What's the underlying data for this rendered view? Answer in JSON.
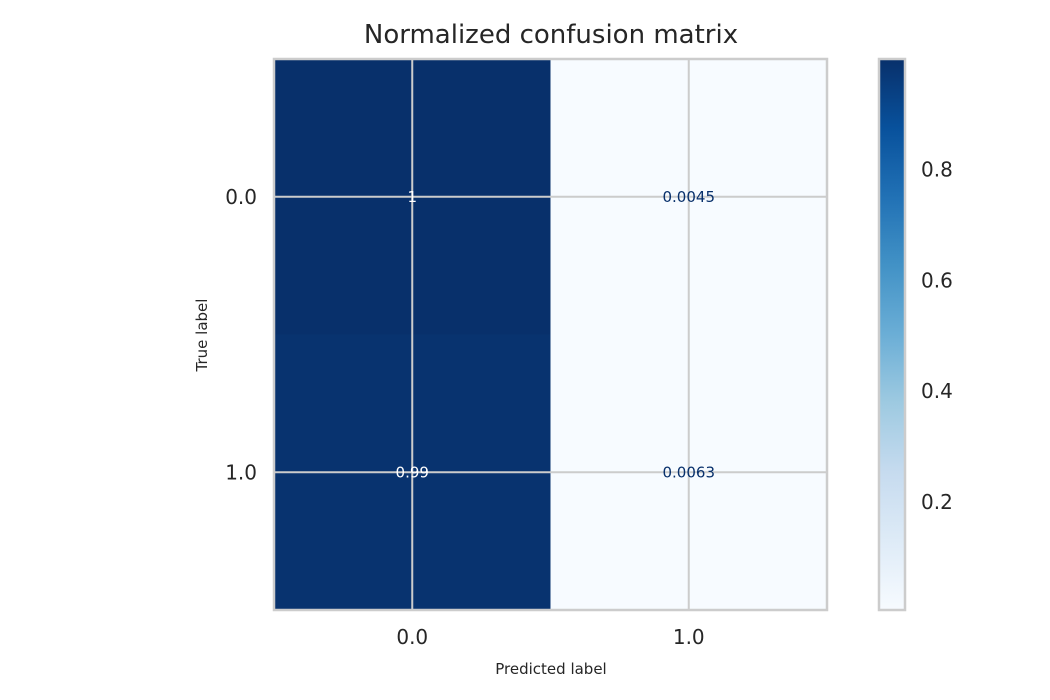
{
  "chart_data": {
    "type": "heatmap",
    "title": "Normalized confusion matrix",
    "xlabel": "Predicted label",
    "ylabel": "True label",
    "x_categories": [
      "0.0",
      "1.0"
    ],
    "y_categories": [
      "0.0",
      "1.0"
    ],
    "values": [
      [
        1.0,
        0.0045
      ],
      [
        0.99,
        0.0063
      ]
    ],
    "value_labels": [
      [
        "1",
        "0.0045"
      ],
      [
        "0.99",
        "0.0063"
      ]
    ],
    "colormap": "Blues",
    "color_low": "#f7fbff",
    "color_high": "#08306b",
    "colorbar": {
      "range": [
        0.0045,
        1.0
      ],
      "ticks": [
        "0.2",
        "0.4",
        "0.6",
        "0.8"
      ],
      "tick_values": [
        0.2,
        0.4,
        0.6,
        0.8
      ]
    },
    "grid": true
  }
}
